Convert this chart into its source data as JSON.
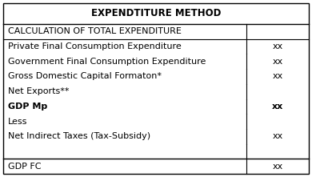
{
  "title": "EXPENDTITURE METHOD",
  "bg_color": "#ffffff",
  "border_color": "#000000",
  "rows": [
    {
      "label": "CALCULATION OF TOTAL EXPENDITURE",
      "value": "",
      "bold": false,
      "header_row": true,
      "separator_above": false,
      "gap_above": false
    },
    {
      "label": "Private Final Consumption Expenditure",
      "value": "xx",
      "bold": false,
      "header_row": false,
      "separator_above": false,
      "gap_above": false
    },
    {
      "label": "Government Final Consumption Expenditure",
      "value": "xx",
      "bold": false,
      "header_row": false,
      "separator_above": false,
      "gap_above": false
    },
    {
      "label": "Gross Domestic Capital Formaton*",
      "value": "xx",
      "bold": false,
      "header_row": false,
      "separator_above": false,
      "gap_above": false
    },
    {
      "label": "Net Exports**",
      "value": "",
      "bold": false,
      "header_row": false,
      "separator_above": false,
      "gap_above": false
    },
    {
      "label": "GDP Mp",
      "value": "xx",
      "bold": true,
      "header_row": false,
      "separator_above": false,
      "gap_above": false
    },
    {
      "label": "Less",
      "value": "",
      "bold": false,
      "header_row": false,
      "separator_above": false,
      "gap_above": false
    },
    {
      "label": "Net Indirect Taxes (Tax-Subsidy)",
      "value": "xx",
      "bold": false,
      "header_row": false,
      "separator_above": false,
      "gap_above": false
    },
    {
      "label": "",
      "value": "",
      "bold": false,
      "header_row": false,
      "separator_above": false,
      "gap_above": true
    },
    {
      "label": "GDP FC",
      "value": "xx",
      "bold": false,
      "header_row": false,
      "separator_above": true,
      "gap_above": false
    }
  ],
  "col_split": 0.795,
  "title_fontsize": 8.5,
  "row_fontsize": 8.0,
  "text_color": "#000000",
  "fig_width": 3.9,
  "fig_height": 2.21,
  "dpi": 100
}
